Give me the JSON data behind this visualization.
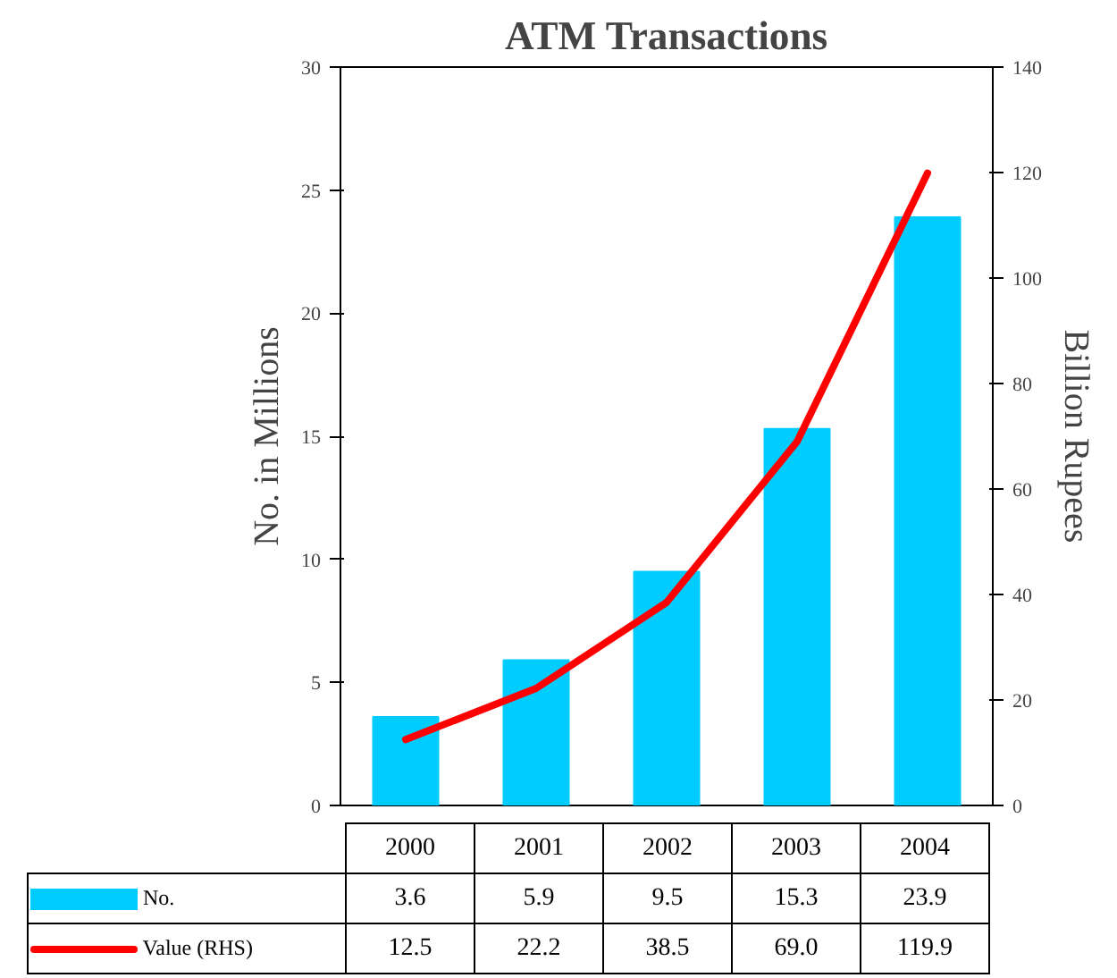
{
  "chart_data": {
    "type": "bar",
    "title": "ATM Transactions",
    "ylabel": "No. in Millions",
    "y2label": "Billion Rupees",
    "categories": [
      "2000",
      "2001",
      "2002",
      "2003",
      "2004"
    ],
    "series": [
      {
        "name": "No.",
        "color": "#00ccff",
        "values": [
          3.6,
          5.9,
          9.5,
          15.3,
          23.9
        ],
        "value_labels": [
          "3.6",
          "5.9",
          "9.5",
          "15.3",
          "23.9"
        ]
      },
      {
        "name": "Value (RHS)",
        "type": "line",
        "axis": "y2",
        "color": "#ff0000",
        "values": [
          12.5,
          22.2,
          38.5,
          69.0,
          119.9
        ],
        "value_labels": [
          "12.5",
          "22.2",
          "38.5",
          "69.0",
          "119.9"
        ]
      }
    ],
    "ylim": [
      0,
      30
    ],
    "yticks": [
      0,
      5,
      10,
      15,
      20,
      25,
      30
    ],
    "y2lim": [
      0,
      140
    ],
    "y2ticks": [
      0,
      20,
      40,
      60,
      80,
      100,
      120,
      140
    ],
    "legend": "bottom",
    "grid": false
  }
}
